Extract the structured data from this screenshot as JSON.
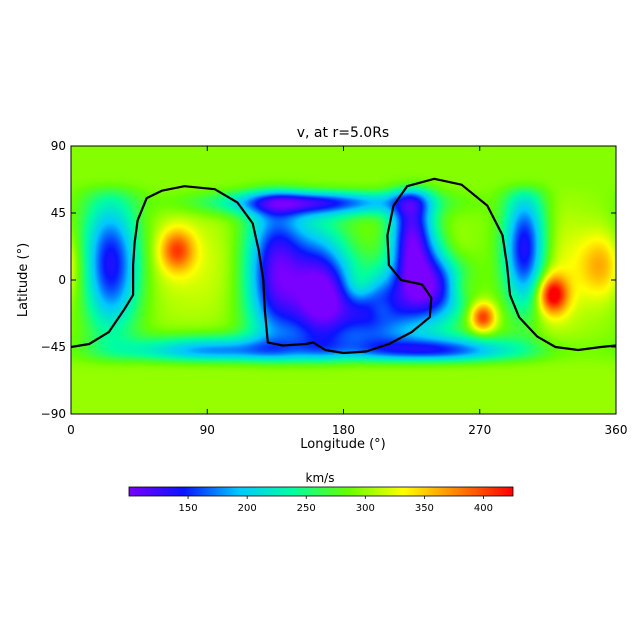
{
  "chart_data": {
    "type": "heatmap",
    "title": "v, at r=5.0Rs",
    "xlabel": "Longitude (°)",
    "ylabel": "Latitude (°)",
    "xlim": [
      0,
      360
    ],
    "ylim": [
      -90,
      90
    ],
    "xticks": [
      0,
      90,
      180,
      270,
      360
    ],
    "yticks": [
      90,
      45,
      0,
      -45,
      -90
    ],
    "xtick_labels": [
      "0",
      "90",
      "180",
      "270",
      "360"
    ],
    "ytick_labels": [
      "90",
      "45",
      "0",
      "−45",
      "−90"
    ],
    "colorbar": {
      "label": "km/s",
      "range": [
        100,
        425
      ],
      "ticks": [
        150,
        200,
        250,
        300,
        350,
        400
      ],
      "tick_labels": [
        "150",
        "200",
        "250",
        "300",
        "350",
        "400"
      ],
      "colormap": [
        "#7a00ff",
        "#0a14ff",
        "#00c8ff",
        "#00ffa0",
        "#66ff00",
        "#ffff00",
        "#ff8000",
        "#ff0000"
      ]
    },
    "background_value": 295,
    "polar_band": {
      "north_value": 295,
      "north_from_lat": 62,
      "south_value": 300,
      "south_below_lat": -55
    },
    "features": [
      {
        "kind": "slow",
        "lon": 25,
        "lat": 10,
        "value": 120,
        "sx": 14,
        "sy": 30
      },
      {
        "kind": "slow",
        "lon": 135,
        "lat": 5,
        "value": 120,
        "sx": 14,
        "sy": 35
      },
      {
        "kind": "slow",
        "lon": 165,
        "lat": -10,
        "value": 110,
        "sx": 14,
        "sy": 28
      },
      {
        "kind": "slow",
        "lon": 200,
        "lat": -20,
        "value": 140,
        "sx": 18,
        "sy": 18
      },
      {
        "kind": "slow",
        "lon": 225,
        "lat": 30,
        "value": 120,
        "sx": 10,
        "sy": 28
      },
      {
        "kind": "slow",
        "lon": 240,
        "lat": -5,
        "value": 140,
        "sx": 14,
        "sy": 18
      },
      {
        "kind": "slow",
        "lon": 300,
        "lat": 20,
        "value": 120,
        "sx": 10,
        "sy": 28
      },
      {
        "kind": "slow",
        "lon": 160,
        "lat": 52,
        "value": 150,
        "sx": 45,
        "sy": 6
      },
      {
        "kind": "slow",
        "lon": 240,
        "lat": -48,
        "value": 150,
        "sx": 40,
        "sy": 7
      },
      {
        "kind": "slow",
        "lon": 95,
        "lat": -48,
        "value": 170,
        "sx": 40,
        "sy": 7
      },
      {
        "kind": "fast",
        "lon": 10,
        "lat": 5,
        "value": 330,
        "sx": 12,
        "sy": 25
      },
      {
        "kind": "fast",
        "lon": 70,
        "lat": 20,
        "value": 385,
        "sx": 8,
        "sy": 10
      },
      {
        "kind": "fast",
        "lon": 80,
        "lat": 10,
        "value": 320,
        "sx": 28,
        "sy": 28
      },
      {
        "kind": "fast",
        "lon": 150,
        "lat": 30,
        "value": 290,
        "sx": 18,
        "sy": 14
      },
      {
        "kind": "fast",
        "lon": 190,
        "lat": -5,
        "value": 345,
        "sx": 8,
        "sy": 9
      },
      {
        "kind": "fast",
        "lon": 205,
        "lat": -20,
        "value": 320,
        "sx": 6,
        "sy": 6
      },
      {
        "kind": "fast",
        "lon": 255,
        "lat": 20,
        "value": 315,
        "sx": 8,
        "sy": 12
      },
      {
        "kind": "fast",
        "lon": 258,
        "lat": -5,
        "value": 320,
        "sx": 7,
        "sy": 7
      },
      {
        "kind": "fast",
        "lon": 272,
        "lat": -25,
        "value": 410,
        "sx": 6,
        "sy": 7
      },
      {
        "kind": "fast",
        "lon": 318,
        "lat": -10,
        "value": 425,
        "sx": 7,
        "sy": 9
      },
      {
        "kind": "fast",
        "lon": 318,
        "lat": 5,
        "value": 330,
        "sx": 18,
        "sy": 30
      },
      {
        "kind": "fast",
        "lon": 350,
        "lat": 10,
        "value": 355,
        "sx": 10,
        "sy": 15
      }
    ],
    "neutral_lines": [
      [
        [
          0,
          -45
        ],
        [
          12,
          -43
        ],
        [
          25,
          -35
        ],
        [
          35,
          -20
        ],
        [
          41,
          -10
        ],
        [
          41,
          10
        ],
        [
          42,
          25
        ],
        [
          44,
          40
        ],
        [
          50,
          55
        ],
        [
          60,
          60
        ],
        [
          75,
          63
        ],
        [
          95,
          61
        ],
        [
          110,
          52
        ],
        [
          120,
          38
        ],
        [
          124,
          20
        ],
        [
          127,
          0
        ],
        [
          128,
          -20
        ],
        [
          130,
          -42
        ],
        [
          140,
          -44
        ],
        [
          155,
          -43
        ],
        [
          160,
          -42
        ],
        [
          168,
          -47
        ],
        [
          180,
          -49
        ],
        [
          195,
          -48
        ],
        [
          210,
          -43
        ],
        [
          225,
          -35
        ],
        [
          237,
          -25
        ],
        [
          238,
          -12
        ],
        [
          232,
          -3
        ],
        [
          218,
          0
        ],
        [
          210,
          10
        ],
        [
          209,
          30
        ],
        [
          213,
          50
        ],
        [
          222,
          63
        ],
        [
          240,
          68
        ],
        [
          258,
          64
        ],
        [
          275,
          50
        ],
        [
          285,
          30
        ],
        [
          288,
          10
        ],
        [
          290,
          -10
        ],
        [
          296,
          -25
        ],
        [
          308,
          -38
        ],
        [
          320,
          -45
        ],
        [
          335,
          -47
        ],
        [
          350,
          -45
        ],
        [
          360,
          -44
        ]
      ]
    ]
  }
}
